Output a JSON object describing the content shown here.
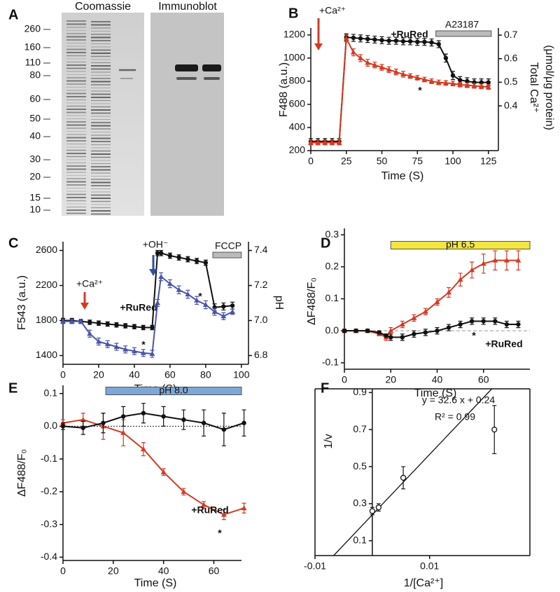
{
  "gel": {
    "panel": "A",
    "titles": [
      "Coomassie",
      "Immunoblot"
    ],
    "markers": [
      260,
      160,
      110,
      80,
      60,
      50,
      40,
      30,
      20,
      15,
      10
    ]
  },
  "chart_data": [
    {
      "panel": "B",
      "type": "line",
      "xlabel": "Time (S)",
      "ylabel": "F488 (a.u.)",
      "y2label": [
        "Total Ca²⁺",
        "(μmol/μg protein)"
      ],
      "xlim": [
        0,
        132
      ],
      "xticks": [
        0,
        25,
        50,
        75,
        100,
        125
      ],
      "ylim": [
        200,
        1260
      ],
      "yticks": [
        200,
        400,
        600,
        800,
        1000,
        1200
      ],
      "y2lim": [
        0.21,
        0.73
      ],
      "y2ticks": [
        0.4,
        0.5,
        0.6,
        0.7
      ],
      "x": [
        0,
        5,
        10,
        15,
        20,
        25,
        30,
        35,
        40,
        45,
        50,
        55,
        60,
        65,
        70,
        75,
        80,
        85,
        90,
        95,
        100,
        105,
        110,
        115,
        120,
        125
      ],
      "series": [
        {
          "name": "+RuRed",
          "color": "#111111",
          "marker": "circle",
          "values": [
            280,
            280,
            280,
            280,
            280,
            1180,
            1175,
            1170,
            1165,
            1160,
            1155,
            1150,
            1150,
            1145,
            1145,
            1140,
            1140,
            1135,
            1120,
            1000,
            850,
            810,
            800,
            790,
            790,
            790
          ],
          "errors": [
            25,
            25,
            25,
            25,
            25,
            30,
            30,
            30,
            30,
            30,
            30,
            30,
            30,
            30,
            30,
            30,
            30,
            30,
            30,
            35,
            35,
            30,
            30,
            30,
            30,
            30
          ]
        },
        {
          "color": "#d43a22",
          "marker": "triangle",
          "values": [
            270,
            270,
            270,
            270,
            270,
            1170,
            1050,
            1000,
            960,
            940,
            920,
            900,
            880,
            860,
            845,
            830,
            815,
            800,
            790,
            785,
            780,
            770,
            765,
            760,
            755,
            750
          ],
          "errors": [
            20,
            20,
            20,
            20,
            20,
            30,
            30,
            30,
            30,
            25,
            25,
            25,
            25,
            25,
            20,
            20,
            20,
            20,
            20,
            20,
            20,
            20,
            20,
            20,
            20,
            20
          ]
        }
      ],
      "treatment": {
        "label": "A23187",
        "start": 88,
        "end": 127,
        "color": "#bbbbbb"
      },
      "annotations": [
        "+Ca²⁺",
        "*"
      ]
    },
    {
      "panel": "C",
      "type": "line",
      "xlabel": "Time (S)",
      "ylabel": "F543 (a.u.)",
      "y2label": [
        "pH"
      ],
      "xlim": [
        0,
        104
      ],
      "xticks": [
        0,
        20,
        40,
        60,
        80,
        100
      ],
      "ylim": [
        1300,
        2700
      ],
      "yticks": [
        1400,
        1800,
        2200,
        2600
      ],
      "y2lim": [
        6.75,
        7.45
      ],
      "y2ticks": [
        6.8,
        {
          "value": 7,
          "label": "7.0"
        },
        7.2,
        7.4
      ],
      "x": [
        0,
        5,
        10,
        15,
        20,
        25,
        30,
        35,
        40,
        45,
        50,
        53,
        55,
        60,
        65,
        70,
        75,
        80,
        85,
        90,
        95
      ],
      "series": [
        {
          "name": "+RuRed",
          "color": "#111111",
          "marker": "circle",
          "values": [
            1800,
            1800,
            1790,
            1780,
            1770,
            1760,
            1750,
            1740,
            1730,
            1720,
            1720,
            2570,
            2570,
            2540,
            2520,
            2500,
            2480,
            2460,
            1950,
            1960,
            1970
          ],
          "errors": [
            25,
            25,
            25,
            25,
            25,
            25,
            25,
            25,
            25,
            25,
            25,
            30,
            30,
            30,
            30,
            30,
            30,
            30,
            40,
            40,
            40
          ]
        },
        {
          "color": "#4a55a8",
          "marker": "triangle",
          "values": [
            1790,
            1790,
            1790,
            1650,
            1560,
            1530,
            1500,
            1470,
            1450,
            1430,
            1420,
            2000,
            2300,
            2220,
            2150,
            2100,
            2030,
            1980,
            1900,
            1850,
            1900
          ],
          "errors": [
            25,
            25,
            25,
            40,
            40,
            40,
            40,
            40,
            40,
            40,
            40,
            40,
            45,
            45,
            45,
            45,
            45,
            45,
            40,
            40,
            30
          ]
        }
      ],
      "treatment": {
        "label": "FCCP",
        "start": 84,
        "end": 100,
        "color": "#bbbbbb"
      },
      "annotations": [
        "+Ca²⁺",
        "+OH⁻",
        "*",
        "*"
      ]
    },
    {
      "panel": "D",
      "type": "line",
      "xlabel": "Time (S)",
      "ylabel": "ΔF488/F₀",
      "xlim": [
        0,
        80
      ],
      "xticks": [
        0,
        20,
        40,
        60
      ],
      "ylim": [
        -0.12,
        0.32
      ],
      "yticks": [
        -0.1,
        {
          "value": 0,
          "label": "0.0"
        },
        0.1,
        0.2,
        0.3
      ],
      "hline": {
        "value": 0,
        "style": "dashed"
      },
      "x": [
        0,
        5,
        10,
        15,
        18,
        20,
        25,
        30,
        35,
        40,
        45,
        50,
        55,
        60,
        65,
        70,
        75
      ],
      "series": [
        {
          "color": "#d43a22",
          "marker": "triangle",
          "values": [
            0,
            0,
            0,
            -0.01,
            -0.02,
            0,
            0.02,
            0.04,
            0.06,
            0.09,
            0.12,
            0.16,
            0.19,
            0.21,
            0.22,
            0.22,
            0.22
          ],
          "errors": [
            0.005,
            0.005,
            0.005,
            0.005,
            0.01,
            0.01,
            0.01,
            0.01,
            0.01,
            0.01,
            0.015,
            0.02,
            0.025,
            0.03,
            0.03,
            0.03,
            0.03
          ]
        },
        {
          "name": "+RuRed",
          "color": "#111111",
          "marker": "circle",
          "values": [
            0,
            0,
            0,
            -0.005,
            -0.015,
            -0.02,
            -0.02,
            -0.01,
            -0.005,
            0,
            0.01,
            0.02,
            0.03,
            0.03,
            0.03,
            0.02,
            0.02
          ],
          "errors": [
            0.005,
            0.005,
            0.005,
            0.005,
            0.005,
            0.01,
            0.01,
            0.01,
            0.01,
            0.01,
            0.01,
            0.01,
            0.01,
            0.01,
            0.01,
            0.01,
            0.01
          ]
        }
      ],
      "treatment": {
        "label": "pH 6.5",
        "start": 20,
        "end": 80,
        "color": "#f2e640"
      },
      "annotations": [
        "*"
      ]
    },
    {
      "panel": "E",
      "type": "line",
      "xlabel": "Time (S)",
      "ylabel": "ΔF488/F₀",
      "xlim": [
        0,
        71
      ],
      "xticks": [
        0,
        20,
        40,
        60
      ],
      "ylim": [
        -0.41,
        0.125
      ],
      "yticks": [
        0.1,
        {
          "value": 0,
          "label": "0.0"
        },
        -0.1,
        -0.2,
        -0.3,
        -0.4
      ],
      "hline": {
        "value": 0,
        "style": "dotted"
      },
      "x": [
        0,
        8,
        16,
        24,
        32,
        40,
        48,
        56,
        64,
        72
      ],
      "series": [
        {
          "color": "#d43a22",
          "marker": "triangle",
          "values": [
            0.01,
            0.02,
            0,
            -0.02,
            -0.07,
            -0.14,
            -0.2,
            -0.24,
            -0.27,
            -0.25
          ],
          "errors": [
            0.01,
            0.02,
            0.04,
            0.04,
            0.02,
            0.01,
            0.01,
            0.01,
            0.015,
            0.015
          ]
        },
        {
          "name": "+RuRed",
          "color": "#111111",
          "marker": "circle",
          "values": [
            0,
            -0.005,
            0.01,
            0.03,
            0.04,
            0.03,
            0.02,
            0.01,
            -0.01,
            0.01
          ],
          "errors": [
            0.01,
            0.02,
            0.03,
            0.03,
            0.03,
            0.03,
            0.03,
            0.04,
            0.05,
            0.04
          ]
        }
      ],
      "treatment": {
        "label": "pH 8.0",
        "start": 17,
        "end": 71,
        "color": "#7fa6d8"
      },
      "annotations": [
        "*"
      ]
    },
    {
      "panel": "F",
      "type": "scatter",
      "xlabel": "1/[Ca²⁺]",
      "ylabel": "1/v",
      "xlim": [
        -0.01,
        0.0275
      ],
      "xticks": [
        -0.01,
        0.01
      ],
      "ylim": [
        0.02,
        0.92
      ],
      "yticks": [
        0.1,
        0.3,
        0.5,
        0.7,
        0.9
      ],
      "x": [
        0,
        0.0011,
        0.0054,
        0.0213
      ],
      "series": [
        {
          "color": "#111111",
          "marker": "open-circle",
          "values": [
            0.26,
            0.28,
            0.44,
            0.7
          ],
          "errors": [
            0.02,
            0.02,
            0.06,
            0.13
          ]
        }
      ],
      "fit": {
        "slope": 32.6,
        "intercept": 0.24
      },
      "annotations": [
        "y = 32.6 x + 0.24",
        "R² =  0.99"
      ]
    }
  ]
}
